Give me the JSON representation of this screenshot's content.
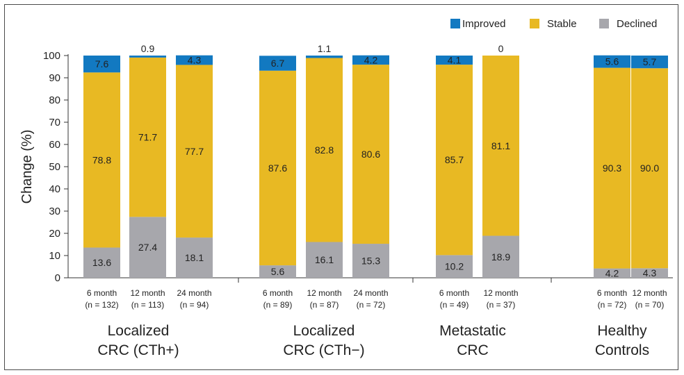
{
  "chart_data": {
    "type": "bar",
    "stacked": true,
    "ylabel": "Change (%)",
    "ylim": [
      0,
      100
    ],
    "yticks": [
      0,
      10,
      20,
      30,
      40,
      50,
      60,
      70,
      80,
      90,
      100
    ],
    "grid": false,
    "legend": {
      "placement": "top-right",
      "entries": [
        {
          "name": "Improved",
          "color": "#1279c1"
        },
        {
          "name": "Stable",
          "color": "#e8b923"
        },
        {
          "name": "Declined",
          "color": "#a7a7ac"
        }
      ]
    },
    "groups": [
      {
        "label_lines": [
          "Localized",
          "CRC (CTh+)"
        ],
        "bars": [
          {
            "time": "6 month",
            "n": "(n = 132)",
            "declined": 13.6,
            "stable": 78.8,
            "improved": 7.6,
            "labels": {
              "declined": "13.6",
              "stable": "78.8",
              "improved": "7.6"
            }
          },
          {
            "time": "12 month",
            "n": "(n = 113)",
            "declined": 27.4,
            "stable": 71.7,
            "improved": 0.9,
            "labels": {
              "declined": "27.4",
              "stable": "71.7",
              "improved": "0.9"
            }
          },
          {
            "time": "24 month",
            "n": "(n = 94)",
            "declined": 18.1,
            "stable": 77.7,
            "improved": 4.3,
            "labels": {
              "declined": "18.1",
              "stable": "77.7",
              "improved": "4.3"
            }
          }
        ]
      },
      {
        "label_lines": [
          "Localized",
          "CRC (CTh−)"
        ],
        "bars": [
          {
            "time": "6 month",
            "n": "(n = 89)",
            "declined": 5.6,
            "stable": 87.6,
            "improved": 6.7,
            "labels": {
              "declined": "5.6",
              "stable": "87.6",
              "improved": "6.7"
            }
          },
          {
            "time": "12 month",
            "n": "(n = 87)",
            "declined": 16.1,
            "stable": 82.8,
            "improved": 1.1,
            "labels": {
              "declined": "16.1",
              "stable": "82.8",
              "improved": "1.1"
            }
          },
          {
            "time": "24 month",
            "n": "(n = 72)",
            "declined": 15.3,
            "stable": 80.6,
            "improved": 4.2,
            "labels": {
              "declined": "15.3",
              "stable": "80.6",
              "improved": "4.2"
            }
          }
        ]
      },
      {
        "label_lines": [
          "Metastatic",
          "CRC"
        ],
        "bars": [
          {
            "time": "6 month",
            "n": "(n = 49)",
            "declined": 10.2,
            "stable": 85.7,
            "improved": 4.1,
            "labels": {
              "declined": "10.2",
              "stable": "85.7",
              "improved": "4.1"
            }
          },
          {
            "time": "12 month",
            "n": "(n = 37)",
            "declined": 18.9,
            "stable": 81.1,
            "improved": 0,
            "labels": {
              "declined": "18.9",
              "stable": "81.1",
              "improved": "0"
            }
          }
        ]
      },
      {
        "label_lines": [
          "Healthy",
          "Controls"
        ],
        "bars": [
          {
            "time": "6 month",
            "n": "(n = 72)",
            "declined": 4.2,
            "stable": 90.3,
            "improved": 5.6,
            "labels": {
              "declined": "4.2",
              "stable": "90.3",
              "improved": "5.6"
            }
          },
          {
            "time": "12 month",
            "n": "(n = 70)",
            "declined": 4.3,
            "stable": 90.0,
            "improved": 5.7,
            "labels": {
              "declined": "4.3",
              "stable": "90.0",
              "improved": "5.7"
            }
          }
        ]
      }
    ]
  }
}
